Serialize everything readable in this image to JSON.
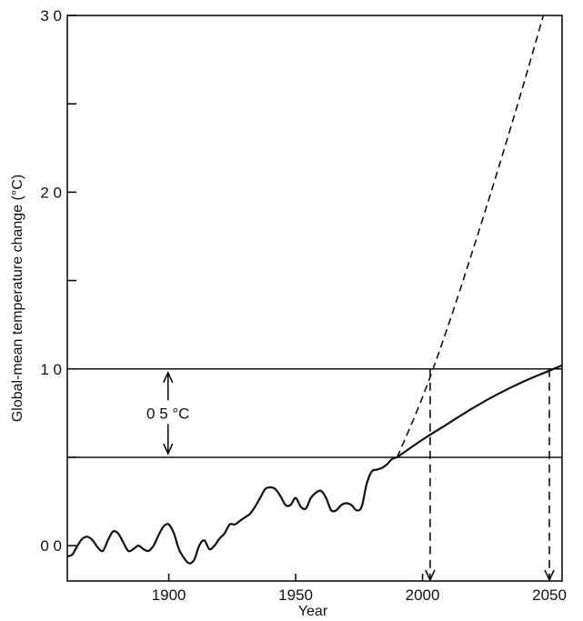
{
  "chart_data": {
    "type": "line",
    "title": "",
    "xlabel": "Year",
    "ylabel": "Global-mean temperature change (°C)",
    "xlim": [
      1860,
      2055
    ],
    "ylim": [
      -0.2,
      3.0
    ],
    "x_ticks": [
      1900,
      1950,
      2000,
      2050
    ],
    "x_tick_labels": [
      "1900",
      "1950",
      "2000",
      "2050"
    ],
    "y_ticks": [
      0.0,
      1.0,
      2.0,
      3.0
    ],
    "y_tick_labels": [
      "0 0",
      "1 0",
      "2 0",
      "3 0"
    ],
    "y_minor_ticks": [
      0.5,
      1.5,
      2.5
    ],
    "grid": false,
    "series": [
      {
        "style": "solid",
        "x": [
          1860,
          1862,
          1864,
          1866,
          1868,
          1870,
          1872,
          1874,
          1876,
          1878,
          1880,
          1882,
          1884,
          1886,
          1888,
          1890,
          1892,
          1894,
          1896,
          1898,
          1900,
          1902,
          1904,
          1906,
          1908,
          1910,
          1912,
          1914,
          1916,
          1918,
          1920,
          1922,
          1924,
          1926,
          1928,
          1930,
          1932,
          1934,
          1936,
          1938,
          1940,
          1942,
          1944,
          1946,
          1948,
          1950,
          1952,
          1954,
          1956,
          1958,
          1960,
          1962,
          1964,
          1966,
          1968,
          1970,
          1972,
          1974,
          1976,
          1978,
          1980,
          1982,
          1984,
          1986,
          1988,
          1990
        ],
        "y": [
          -0.06,
          -0.05,
          0.0,
          0.04,
          0.05,
          0.03,
          -0.01,
          -0.03,
          0.03,
          0.08,
          0.07,
          0.02,
          -0.03,
          -0.02,
          0.0,
          -0.02,
          -0.03,
          0.0,
          0.06,
          0.11,
          0.12,
          0.07,
          -0.02,
          -0.07,
          -0.1,
          -0.08,
          0.0,
          0.03,
          -0.02,
          0.0,
          0.04,
          0.07,
          0.12,
          0.12,
          0.14,
          0.16,
          0.18,
          0.22,
          0.27,
          0.32,
          0.33,
          0.32,
          0.28,
          0.23,
          0.23,
          0.27,
          0.22,
          0.21,
          0.27,
          0.3,
          0.31,
          0.27,
          0.2,
          0.2,
          0.23,
          0.24,
          0.23,
          0.2,
          0.22,
          0.35,
          0.42,
          0.43,
          0.44,
          0.46,
          0.49,
          0.5
        ]
      },
      {
        "style": "dashed",
        "x": [
          1990,
          2000,
          2010,
          2020,
          2030,
          2040,
          2050
        ],
        "y": [
          0.5,
          0.84,
          1.24,
          1.68,
          2.14,
          2.62,
          3.12
        ]
      },
      {
        "style": "solid",
        "x": [
          1990,
          2000,
          2010,
          2020,
          2030,
          2040,
          2050,
          2055
        ],
        "y": [
          0.5,
          0.6,
          0.69,
          0.78,
          0.86,
          0.93,
          0.99,
          1.02
        ]
      }
    ],
    "reference_lines": [
      {
        "y": 1.0,
        "style": "solid"
      },
      {
        "y": 0.5,
        "style": "solid"
      }
    ],
    "vertical_arrows": [
      {
        "x": 2003,
        "from_y": 1.0,
        "style": "dashed"
      },
      {
        "x": 2050,
        "from_y": 1.0,
        "style": "dashed"
      }
    ],
    "annotations": [
      {
        "text": "0 5 °C",
        "x": 1904,
        "y": 0.75,
        "double_arrow": [
          0.5,
          1.0
        ]
      }
    ]
  }
}
